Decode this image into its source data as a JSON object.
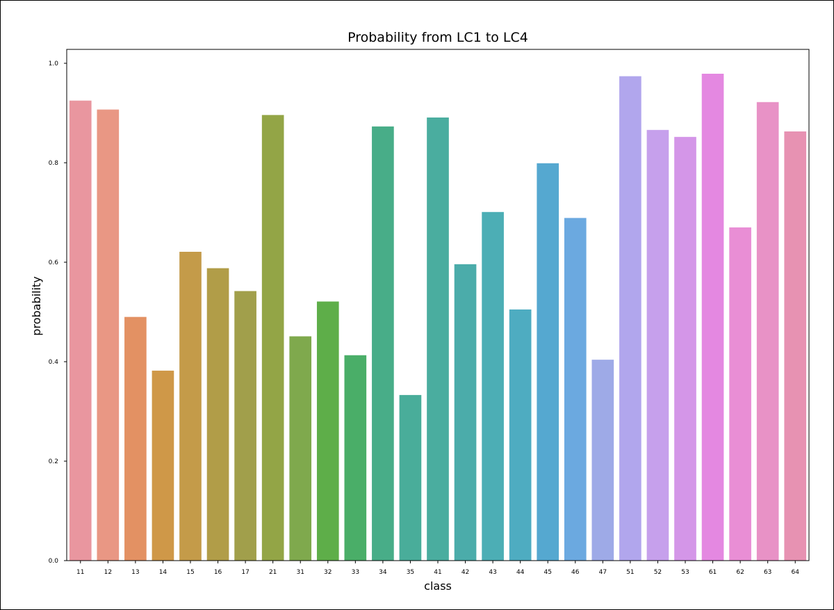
{
  "chart_data": {
    "type": "bar",
    "title": "Probability from LC1 to LC4",
    "xlabel": "class",
    "ylabel": "probability",
    "ylim": [
      0,
      1.0
    ],
    "yticks": [
      "0.0",
      "0.2",
      "0.4",
      "0.6",
      "0.8",
      "1.0"
    ],
    "grid": false,
    "legend": "none",
    "categories": [
      "11",
      "12",
      "13",
      "14",
      "15",
      "16",
      "17",
      "21",
      "31",
      "32",
      "33",
      "34",
      "35",
      "41",
      "42",
      "43",
      "44",
      "45",
      "46",
      "47",
      "51",
      "52",
      "53",
      "61",
      "62",
      "63",
      "64"
    ],
    "values": [
      0.925,
      0.907,
      0.49,
      0.382,
      0.621,
      0.588,
      0.542,
      0.896,
      0.451,
      0.521,
      0.413,
      0.873,
      0.333,
      0.891,
      0.596,
      0.701,
      0.505,
      0.799,
      0.689,
      0.404,
      0.974,
      0.866,
      0.852,
      0.979,
      0.67,
      0.922,
      0.863
    ],
    "colors": [
      "#e9969f",
      "#e99784",
      "#e39163",
      "#cf9848",
      "#c49b49",
      "#b19d48",
      "#a19f4b",
      "#93a546",
      "#7fa94d",
      "#5eae49",
      "#4aae68",
      "#48ad88",
      "#49ad9a",
      "#4aad9f",
      "#4bacaa",
      "#4caeb5",
      "#4eacc1",
      "#55a8d0",
      "#6ba9e0",
      "#9eaae7",
      "#b1a6ed",
      "#c6a0ec",
      "#d496e8",
      "#e488e1",
      "#e98ed5",
      "#e892c6",
      "#e792b2"
    ]
  }
}
